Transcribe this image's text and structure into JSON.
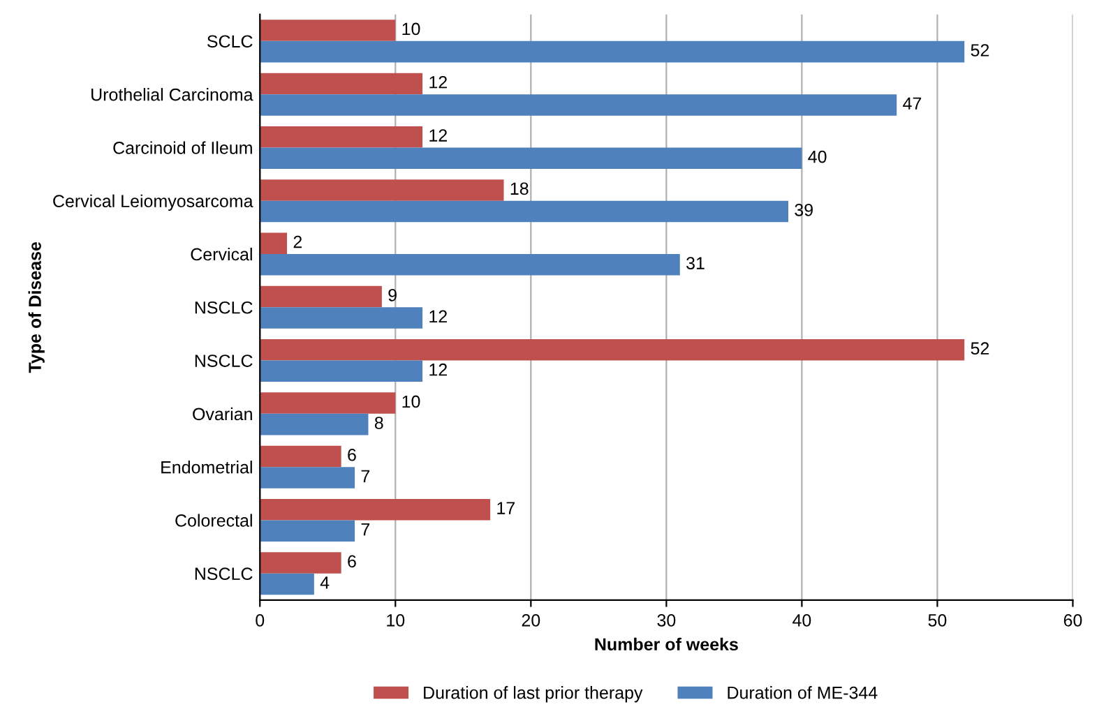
{
  "chart_data": {
    "type": "bar",
    "orientation": "horizontal",
    "xlabel": "Number of weeks",
    "ylabel": "Type of Disease",
    "categories": [
      "SCLC",
      "Urothelial Carcinoma",
      "Carcinoid of Ileum",
      "Cervical Leiomyosarcoma",
      "Cervical",
      "NSCLC",
      "NSCLC",
      "Ovarian",
      "Endometrial",
      "Colorectal",
      "NSCLC"
    ],
    "series": [
      {
        "name": "Duration of last prior therapy",
        "color": "#c0504d",
        "values": [
          10,
          12,
          12,
          18,
          2,
          9,
          52,
          10,
          6,
          17,
          6
        ]
      },
      {
        "name": "Duration of ME-344",
        "color": "#4f81bd",
        "values": [
          52,
          47,
          40,
          39,
          31,
          12,
          12,
          8,
          7,
          7,
          4
        ]
      }
    ],
    "xlim": [
      0,
      60
    ],
    "xticks": [
      0,
      10,
      20,
      30,
      40,
      50,
      60
    ],
    "grid": "x",
    "legend": "bottom",
    "data_labels": true
  }
}
